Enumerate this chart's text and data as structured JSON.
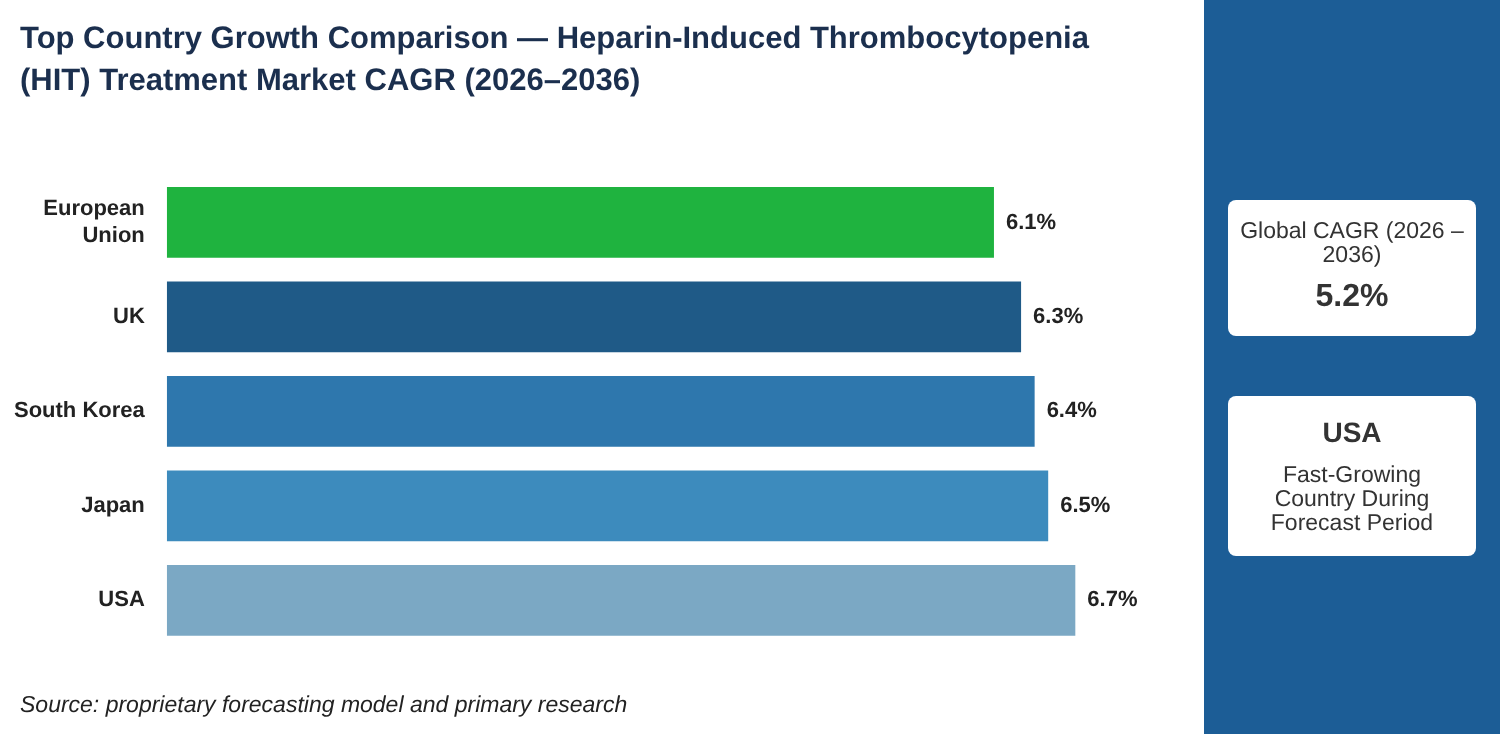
{
  "chart_data": {
    "type": "bar",
    "orientation": "horizontal",
    "title": "Top Country Growth Comparison — Heparin-Induced Thrombocytopenia (HIT) Treatment Market CAGR (2026–2036)",
    "categories": [
      "European Union",
      "UK",
      "South Korea",
      "Japan",
      "USA"
    ],
    "values": [
      6.1,
      6.3,
      6.4,
      6.5,
      6.7
    ],
    "colors": [
      "#1fb33f",
      "#1f5a87",
      "#2e77ad",
      "#3d8bbd",
      "#7ba8c4"
    ],
    "value_labels": [
      "6.1%",
      "6.3%",
      "6.4%",
      "6.5%",
      "6.7%"
    ],
    "tick_labels": "y",
    "legend": false,
    "annotations": [
      "Global CAGR (2026 – 2036)",
      "5.2%",
      "USA",
      "Fast-Growing Country During Forecast Period",
      "Source: proprietary forecasting model and primary research"
    ]
  }
}
